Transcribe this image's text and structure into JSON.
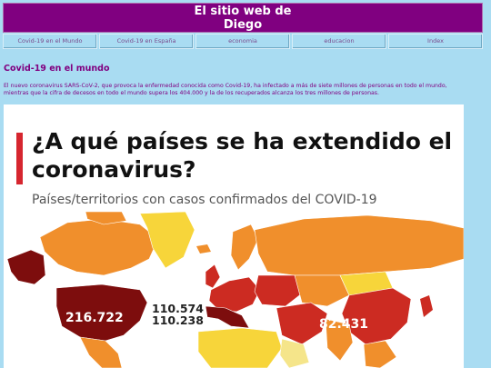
{
  "site": {
    "title_line1": "El sitio web de",
    "title_line2": "Diego"
  },
  "nav": [
    "Covid-19 en el Mundo",
    "Covid-19 en España",
    "economia",
    "educacion",
    "Index"
  ],
  "article": {
    "heading": "Covid-19 en el mundo",
    "intro": "El nuevo coronavirus SARS-CoV-2, que provoca la enfermedad conocida como Covid-19, ha infectado a más de siete millones de personas en todo el mundo, mientras que la cifra de decesos en todo el mundo supera los 404.000 y la de los recuperados alcanza los tres millones de personas."
  },
  "infographic": {
    "title": "¿A qué países se ha extendido el coronavirus?",
    "subtitle": "Países/territorios con casos confirmados del COVID-19",
    "labels": {
      "usa": "216.722",
      "europe_1": "110.574",
      "europe_2": "110.238",
      "china": "82.431"
    },
    "colors": {
      "accent": "#d6262f",
      "dark": "#7d0d0d",
      "red": "#cc2b22",
      "orange": "#f08f2c",
      "yellow": "#f7d53a",
      "light": "#f5e58a"
    }
  }
}
